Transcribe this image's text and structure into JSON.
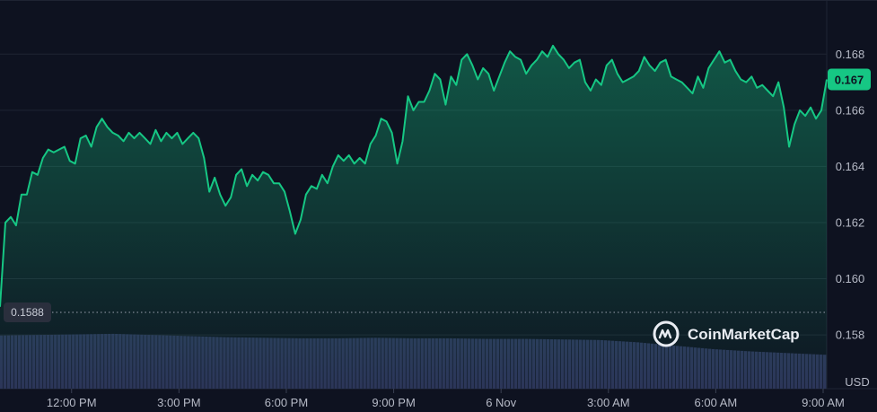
{
  "chart_data": {
    "type": "area",
    "currency_label": "USD",
    "brand": "CoinMarketCap",
    "brand_icon": "coinmarketcap-logo-icon",
    "open_price_label": "0.1588",
    "open_price": 0.1588,
    "last_price_label": "0.167",
    "last_price": 0.1671,
    "ylim": [
      0.1565,
      0.1698
    ],
    "y_ticks": [
      {
        "value": 0.168,
        "label": "0.168"
      },
      {
        "value": 0.166,
        "label": "0.166"
      },
      {
        "value": 0.164,
        "label": "0.164"
      },
      {
        "value": 0.162,
        "label": "0.162"
      },
      {
        "value": 0.16,
        "label": "0.160"
      },
      {
        "value": 0.158,
        "label": "0.158"
      }
    ],
    "x_range_hours": [
      10.0,
      33.1
    ],
    "x_ticks": [
      {
        "hour": 12,
        "label": "12:00 PM"
      },
      {
        "hour": 15,
        "label": "3:00 PM"
      },
      {
        "hour": 18,
        "label": "6:00 PM"
      },
      {
        "hour": 21,
        "label": "9:00 PM"
      },
      {
        "hour": 24,
        "label": "6 Nov"
      },
      {
        "hour": 27,
        "label": "3:00 AM"
      },
      {
        "hour": 30,
        "label": "6:00 AM"
      },
      {
        "hour": 33,
        "label": "9:00 AM"
      }
    ],
    "grid": true,
    "legend": "none",
    "colors": {
      "line": "#16c784",
      "area_top": "#16c784",
      "volume": "#2c3358",
      "price_badge": "#16c784",
      "open_badge": "#2a2f3d",
      "grid": "#1f2433"
    },
    "series": [
      {
        "values": [
          [
            10.0,
            0.159
          ],
          [
            10.15,
            0.162
          ],
          [
            10.3,
            0.1622
          ],
          [
            10.45,
            0.1619
          ],
          [
            10.6,
            0.163
          ],
          [
            10.75,
            0.163
          ],
          [
            10.9,
            0.1638
          ],
          [
            11.05,
            0.1637
          ],
          [
            11.2,
            0.1643
          ],
          [
            11.35,
            0.1646
          ],
          [
            11.5,
            0.1645
          ],
          [
            11.65,
            0.1646
          ],
          [
            11.8,
            0.1647
          ],
          [
            11.95,
            0.1642
          ],
          [
            12.1,
            0.1641
          ],
          [
            12.25,
            0.165
          ],
          [
            12.4,
            0.1651
          ],
          [
            12.55,
            0.1647
          ],
          [
            12.7,
            0.1654
          ],
          [
            12.85,
            0.1657
          ],
          [
            13.0,
            0.1654
          ],
          [
            13.15,
            0.1652
          ],
          [
            13.3,
            0.1651
          ],
          [
            13.45,
            0.1649
          ],
          [
            13.6,
            0.1652
          ],
          [
            13.75,
            0.165
          ],
          [
            13.9,
            0.1652
          ],
          [
            14.05,
            0.165
          ],
          [
            14.2,
            0.1648
          ],
          [
            14.35,
            0.1653
          ],
          [
            14.5,
            0.1649
          ],
          [
            14.65,
            0.1652
          ],
          [
            14.8,
            0.165
          ],
          [
            14.95,
            0.1652
          ],
          [
            15.1,
            0.1648
          ],
          [
            15.25,
            0.165
          ],
          [
            15.4,
            0.1652
          ],
          [
            15.55,
            0.165
          ],
          [
            15.7,
            0.1643
          ],
          [
            15.85,
            0.1631
          ],
          [
            16.0,
            0.1636
          ],
          [
            16.15,
            0.163
          ],
          [
            16.3,
            0.1626
          ],
          [
            16.45,
            0.1629
          ],
          [
            16.6,
            0.1637
          ],
          [
            16.75,
            0.1639
          ],
          [
            16.9,
            0.1633
          ],
          [
            17.05,
            0.1637
          ],
          [
            17.2,
            0.1635
          ],
          [
            17.35,
            0.1638
          ],
          [
            17.5,
            0.1637
          ],
          [
            17.65,
            0.1634
          ],
          [
            17.8,
            0.1634
          ],
          [
            17.95,
            0.1631
          ],
          [
            18.1,
            0.1624
          ],
          [
            18.25,
            0.1616
          ],
          [
            18.4,
            0.1621
          ],
          [
            18.55,
            0.163
          ],
          [
            18.7,
            0.1633
          ],
          [
            18.85,
            0.1632
          ],
          [
            19.0,
            0.1637
          ],
          [
            19.15,
            0.1634
          ],
          [
            19.3,
            0.164
          ],
          [
            19.45,
            0.1644
          ],
          [
            19.6,
            0.1642
          ],
          [
            19.75,
            0.1644
          ],
          [
            19.9,
            0.1641
          ],
          [
            20.05,
            0.1643
          ],
          [
            20.2,
            0.1641
          ],
          [
            20.35,
            0.1648
          ],
          [
            20.5,
            0.1651
          ],
          [
            20.65,
            0.1657
          ],
          [
            20.8,
            0.1656
          ],
          [
            20.95,
            0.1652
          ],
          [
            21.1,
            0.1641
          ],
          [
            21.25,
            0.1649
          ],
          [
            21.4,
            0.1665
          ],
          [
            21.55,
            0.166
          ],
          [
            21.7,
            0.1663
          ],
          [
            21.85,
            0.1663
          ],
          [
            22.0,
            0.1667
          ],
          [
            22.15,
            0.1673
          ],
          [
            22.3,
            0.1671
          ],
          [
            22.45,
            0.1662
          ],
          [
            22.6,
            0.1672
          ],
          [
            22.75,
            0.1669
          ],
          [
            22.9,
            0.1678
          ],
          [
            23.05,
            0.168
          ],
          [
            23.2,
            0.1676
          ],
          [
            23.35,
            0.1671
          ],
          [
            23.5,
            0.1675
          ],
          [
            23.65,
            0.1673
          ],
          [
            23.8,
            0.1667
          ],
          [
            23.95,
            0.1672
          ],
          [
            24.1,
            0.1677
          ],
          [
            24.25,
            0.1681
          ],
          [
            24.4,
            0.1679
          ],
          [
            24.55,
            0.1678
          ],
          [
            24.7,
            0.1673
          ],
          [
            24.85,
            0.1676
          ],
          [
            25.0,
            0.1678
          ],
          [
            25.15,
            0.1681
          ],
          [
            25.3,
            0.1679
          ],
          [
            25.45,
            0.1683
          ],
          [
            25.6,
            0.168
          ],
          [
            25.75,
            0.1678
          ],
          [
            25.9,
            0.1675
          ],
          [
            26.05,
            0.1677
          ],
          [
            26.2,
            0.1678
          ],
          [
            26.35,
            0.167
          ],
          [
            26.5,
            0.1667
          ],
          [
            26.65,
            0.1671
          ],
          [
            26.8,
            0.1669
          ],
          [
            26.95,
            0.1676
          ],
          [
            27.1,
            0.1678
          ],
          [
            27.25,
            0.1673
          ],
          [
            27.4,
            0.167
          ],
          [
            27.55,
            0.1671
          ],
          [
            27.7,
            0.1672
          ],
          [
            27.85,
            0.1674
          ],
          [
            28.0,
            0.1679
          ],
          [
            28.15,
            0.1676
          ],
          [
            28.3,
            0.1674
          ],
          [
            28.45,
            0.1677
          ],
          [
            28.6,
            0.1678
          ],
          [
            28.75,
            0.1672
          ],
          [
            28.9,
            0.1671
          ],
          [
            29.05,
            0.167
          ],
          [
            29.2,
            0.1668
          ],
          [
            29.35,
            0.1666
          ],
          [
            29.5,
            0.1672
          ],
          [
            29.65,
            0.1668
          ],
          [
            29.8,
            0.1675
          ],
          [
            29.95,
            0.1678
          ],
          [
            30.1,
            0.1681
          ],
          [
            30.25,
            0.1677
          ],
          [
            30.4,
            0.1678
          ],
          [
            30.55,
            0.1674
          ],
          [
            30.7,
            0.1671
          ],
          [
            30.85,
            0.167
          ],
          [
            31.0,
            0.1672
          ],
          [
            31.15,
            0.1668
          ],
          [
            31.3,
            0.1669
          ],
          [
            31.45,
            0.1667
          ],
          [
            31.6,
            0.1665
          ],
          [
            31.75,
            0.167
          ],
          [
            31.9,
            0.1661
          ],
          [
            32.05,
            0.1647
          ],
          [
            32.2,
            0.1655
          ],
          [
            32.35,
            0.166
          ],
          [
            32.5,
            0.1658
          ],
          [
            32.65,
            0.1661
          ],
          [
            32.8,
            0.1657
          ],
          [
            32.95,
            0.166
          ],
          [
            33.1,
            0.1671
          ]
        ]
      }
    ],
    "volume_fraction": [
      0.94,
      0.95,
      0.96,
      0.97,
      0.95,
      0.93,
      0.91,
      0.9,
      0.89,
      0.89,
      0.9,
      0.89,
      0.89,
      0.88,
      0.88,
      0.87,
      0.86,
      0.82,
      0.76,
      0.7,
      0.66,
      0.63,
      0.6
    ]
  }
}
